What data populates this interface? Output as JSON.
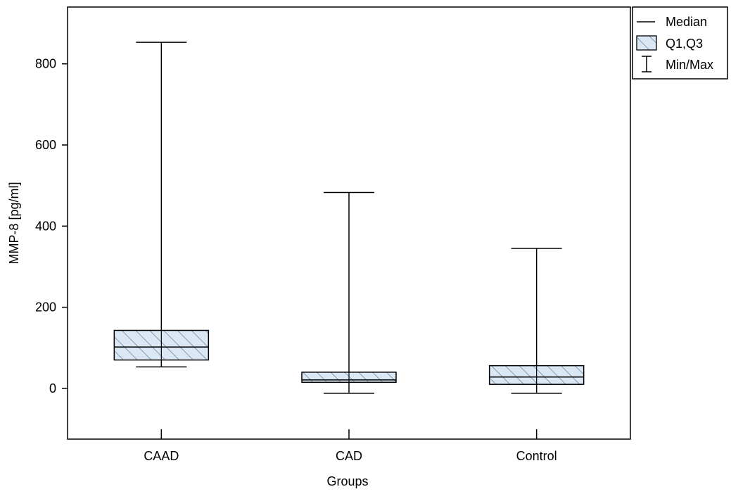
{
  "chart_data": {
    "type": "boxplot",
    "xlabel": "Groups",
    "ylabel": "MMP-8 [pg/ml]",
    "ylim": [
      -125,
      940
    ],
    "yticks": [
      0,
      200,
      400,
      600,
      800
    ],
    "grid": false,
    "legend_placement": "top-right",
    "legend": [
      {
        "label": "Median",
        "symbol": "line"
      },
      {
        "label": "Q1,Q3",
        "symbol": "hatched-box"
      },
      {
        "label": "Min/Max",
        "symbol": "whisker"
      }
    ],
    "categories": [
      "CAAD",
      "CAD",
      "Control"
    ],
    "series": [
      {
        "category": "CAAD",
        "min": 53,
        "q1": 70,
        "median": 102,
        "q3": 143,
        "max": 853
      },
      {
        "category": "CAD",
        "min": -12,
        "q1": 15,
        "median": 21,
        "q3": 40,
        "max": 483
      },
      {
        "category": "Control",
        "min": -12,
        "q1": 10,
        "median": 28,
        "q3": 56,
        "max": 345
      }
    ],
    "colors": {
      "box_fill": "#dbe8f3",
      "hatch": "#5b7fa0",
      "line": "#000000"
    }
  }
}
